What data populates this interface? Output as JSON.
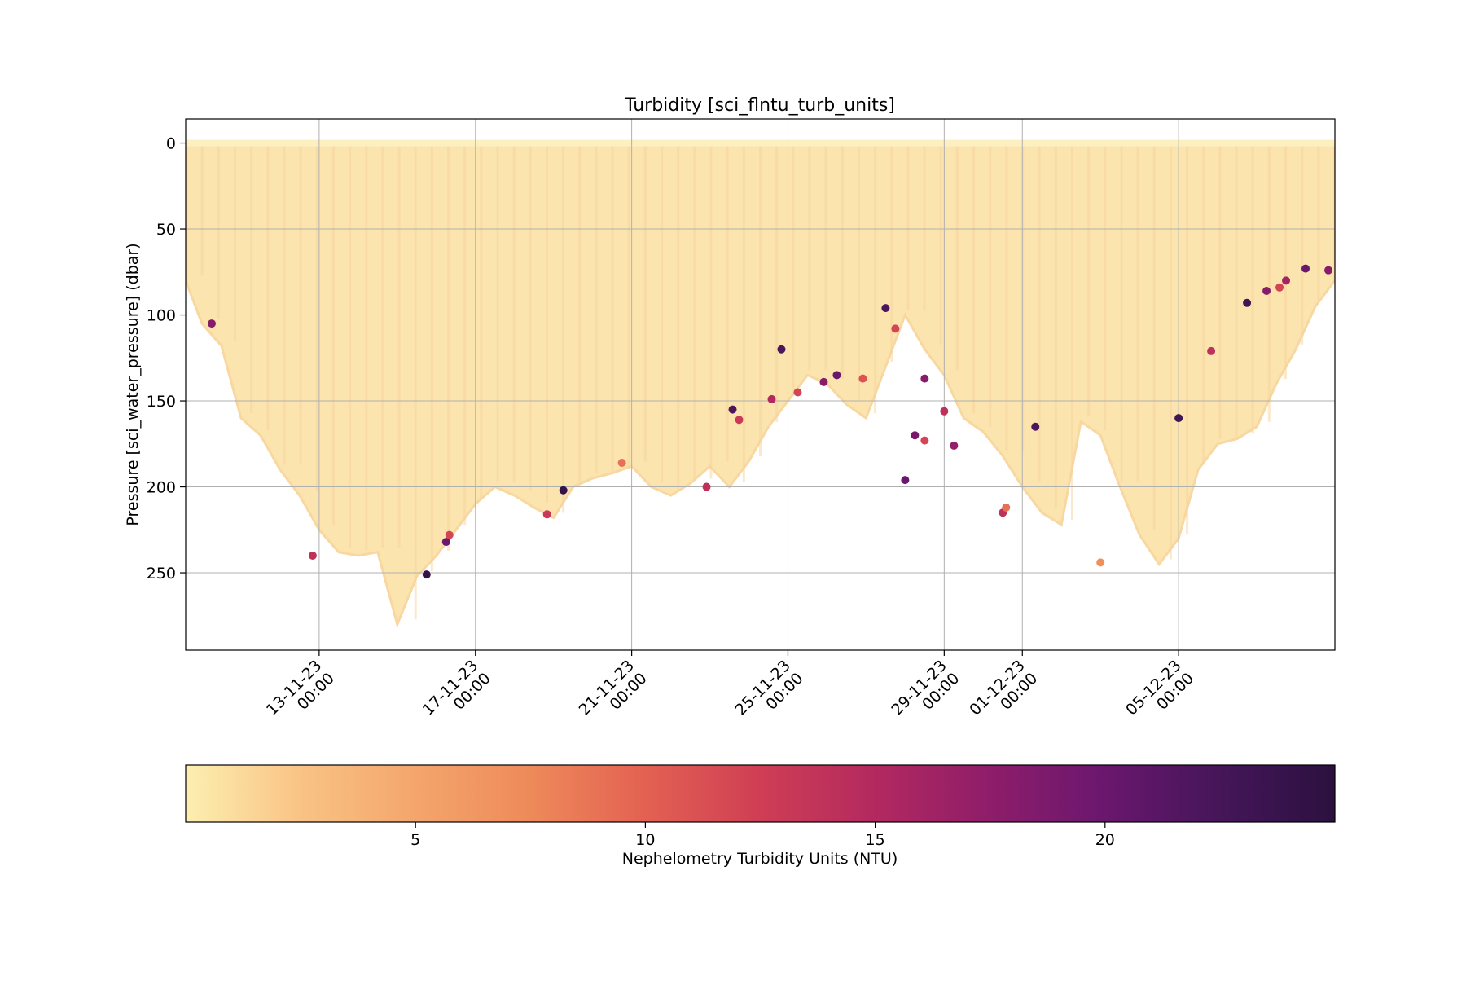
{
  "chart_data": {
    "type": "scatter",
    "title": "Turbidity [sci_flntu_turb_units]",
    "ylabel": "Pressure [sci_water_pressure] (dbar)",
    "xlabel": "",
    "x_range": [
      "2023-11-09T14:00",
      "2023-12-09T00:00"
    ],
    "ylim": [
      295,
      -14
    ],
    "y_inverted": true,
    "grid": true,
    "y_ticks": [
      0,
      50,
      100,
      150,
      200,
      250
    ],
    "x_ticks": [
      {
        "date": "2023-11-13T00:00",
        "line1": "13-11-23",
        "line2": "00:00"
      },
      {
        "date": "2023-11-17T00:00",
        "line1": "17-11-23",
        "line2": "00:00"
      },
      {
        "date": "2023-11-21T00:00",
        "line1": "21-11-23",
        "line2": "00:00"
      },
      {
        "date": "2023-11-25T00:00",
        "line1": "25-11-23",
        "line2": "00:00"
      },
      {
        "date": "2023-11-29T00:00",
        "line1": "29-11-23",
        "line2": "00:00"
      },
      {
        "date": "2023-12-01T00:00",
        "line1": "01-12-23",
        "line2": "00:00"
      },
      {
        "date": "2023-12-05T00:00",
        "line1": "05-12-23",
        "line2": "00:00"
      }
    ],
    "max_depth_profile": {
      "description": "Maximum dive depth of glider profiles over time",
      "dates": [
        "2023-11-09T14:00",
        "2023-11-10T00:00",
        "2023-11-10T12:00",
        "2023-11-11T00:00",
        "2023-11-11T12:00",
        "2023-11-12T00:00",
        "2023-11-12T12:00",
        "2023-11-13T00:00",
        "2023-11-13T12:00",
        "2023-11-14T00:00",
        "2023-11-14T12:00",
        "2023-11-15T00:00",
        "2023-11-15T12:00",
        "2023-11-16T00:00",
        "2023-11-16T12:00",
        "2023-11-17T00:00",
        "2023-11-17T12:00",
        "2023-11-18T00:00",
        "2023-11-18T12:00",
        "2023-11-19T00:00",
        "2023-11-19T12:00",
        "2023-11-20T00:00",
        "2023-11-20T12:00",
        "2023-11-21T00:00",
        "2023-11-21T12:00",
        "2023-11-22T00:00",
        "2023-11-22T12:00",
        "2023-11-23T00:00",
        "2023-11-23T12:00",
        "2023-11-24T00:00",
        "2023-11-24T12:00",
        "2023-11-25T00:00",
        "2023-11-25T12:00",
        "2023-11-26T00:00",
        "2023-11-26T12:00",
        "2023-11-27T00:00",
        "2023-11-27T12:00",
        "2023-11-28T00:00",
        "2023-11-28T12:00",
        "2023-11-29T00:00",
        "2023-11-29T12:00",
        "2023-11-30T00:00",
        "2023-11-30T12:00",
        "2023-12-01T00:00",
        "2023-12-01T12:00",
        "2023-12-02T00:00",
        "2023-12-02T12:00",
        "2023-12-03T00:00",
        "2023-12-03T12:00",
        "2023-12-04T00:00",
        "2023-12-04T12:00",
        "2023-12-05T00:00",
        "2023-12-05T12:00",
        "2023-12-06T00:00",
        "2023-12-06T12:00",
        "2023-12-07T00:00",
        "2023-12-07T12:00",
        "2023-12-08T00:00",
        "2023-12-08T12:00",
        "2023-12-09T00:00"
      ],
      "depths": [
        80,
        105,
        118,
        160,
        170,
        190,
        205,
        225,
        238,
        240,
        238,
        280,
        252,
        240,
        225,
        210,
        200,
        205,
        212,
        218,
        200,
        195,
        192,
        188,
        200,
        205,
        198,
        188,
        200,
        185,
        165,
        150,
        135,
        140,
        152,
        160,
        130,
        100,
        120,
        135,
        160,
        168,
        182,
        200,
        215,
        222,
        162,
        170,
        200,
        228,
        245,
        230,
        190,
        175,
        172,
        165,
        140,
        120,
        95,
        80
      ]
    },
    "outlier_points": [
      {
        "date": "2023-11-10T06:00",
        "depth": 105,
        "value": 18
      },
      {
        "date": "2023-11-12T20:00",
        "depth": 240,
        "value": 14
      },
      {
        "date": "2023-11-15T18:00",
        "depth": 251,
        "value": 24
      },
      {
        "date": "2023-11-16T06:00",
        "depth": 232,
        "value": 20
      },
      {
        "date": "2023-11-16T08:00",
        "depth": 228,
        "value": 12
      },
      {
        "date": "2023-11-18T20:00",
        "depth": 216,
        "value": 13
      },
      {
        "date": "2023-11-19T06:00",
        "depth": 202,
        "value": 24
      },
      {
        "date": "2023-11-20T18:00",
        "depth": 186,
        "value": 9
      },
      {
        "date": "2023-11-22T22:00",
        "depth": 200,
        "value": 14
      },
      {
        "date": "2023-11-23T14:00",
        "depth": 155,
        "value": 22
      },
      {
        "date": "2023-11-23T18:00",
        "depth": 161,
        "value": 13
      },
      {
        "date": "2023-11-24T14:00",
        "depth": 149,
        "value": 15
      },
      {
        "date": "2023-11-24T20:00",
        "depth": 120,
        "value": 22
      },
      {
        "date": "2023-11-25T06:00",
        "depth": 145,
        "value": 12
      },
      {
        "date": "2023-11-25T22:00",
        "depth": 139,
        "value": 18
      },
      {
        "date": "2023-11-26T06:00",
        "depth": 135,
        "value": 20
      },
      {
        "date": "2023-11-26T22:00",
        "depth": 137,
        "value": 11
      },
      {
        "date": "2023-11-27T12:00",
        "depth": 96,
        "value": 22
      },
      {
        "date": "2023-11-27T18:00",
        "depth": 108,
        "value": 12
      },
      {
        "date": "2023-11-28T12:00",
        "depth": 137,
        "value": 18
      },
      {
        "date": "2023-11-29T00:00",
        "depth": 156,
        "value": 14
      },
      {
        "date": "2023-11-28T00:00",
        "depth": 196,
        "value": 20
      },
      {
        "date": "2023-11-28T06:00",
        "depth": 170,
        "value": 19
      },
      {
        "date": "2023-11-28T12:00",
        "depth": 173,
        "value": 12
      },
      {
        "date": "2023-11-29T06:00",
        "depth": 176,
        "value": 17
      },
      {
        "date": "2023-11-30T12:00",
        "depth": 215,
        "value": 14
      },
      {
        "date": "2023-11-30T14:00",
        "depth": 212,
        "value": 9
      },
      {
        "date": "2023-12-01T08:00",
        "depth": 165,
        "value": 22
      },
      {
        "date": "2023-12-03T00:00",
        "depth": 244,
        "value": 7
      },
      {
        "date": "2023-12-05T00:00",
        "depth": 160,
        "value": 23
      },
      {
        "date": "2023-12-05T20:00",
        "depth": 121,
        "value": 14
      },
      {
        "date": "2023-12-06T18:00",
        "depth": 93,
        "value": 23
      },
      {
        "date": "2023-12-07T06:00",
        "depth": 86,
        "value": 18
      },
      {
        "date": "2023-12-07T14:00",
        "depth": 84,
        "value": 12
      },
      {
        "date": "2023-12-07T18:00",
        "depth": 80,
        "value": 16
      },
      {
        "date": "2023-12-08T06:00",
        "depth": 73,
        "value": 20
      },
      {
        "date": "2023-12-08T20:00",
        "depth": 74,
        "value": 18
      }
    ],
    "colorbar": {
      "label": "Nephelometry Turbidity Units (NTU)",
      "range": [
        0,
        25
      ],
      "ticks": [
        5,
        10,
        15,
        20
      ],
      "colormap": "magma_r",
      "colors": [
        "#fcefb0",
        "#f9c385",
        "#f4a56c",
        "#ee8a5a",
        "#e36152",
        "#cf3e55",
        "#b3295f",
        "#8e1d6a",
        "#6a176e",
        "#451659",
        "#2b113f"
      ]
    }
  }
}
